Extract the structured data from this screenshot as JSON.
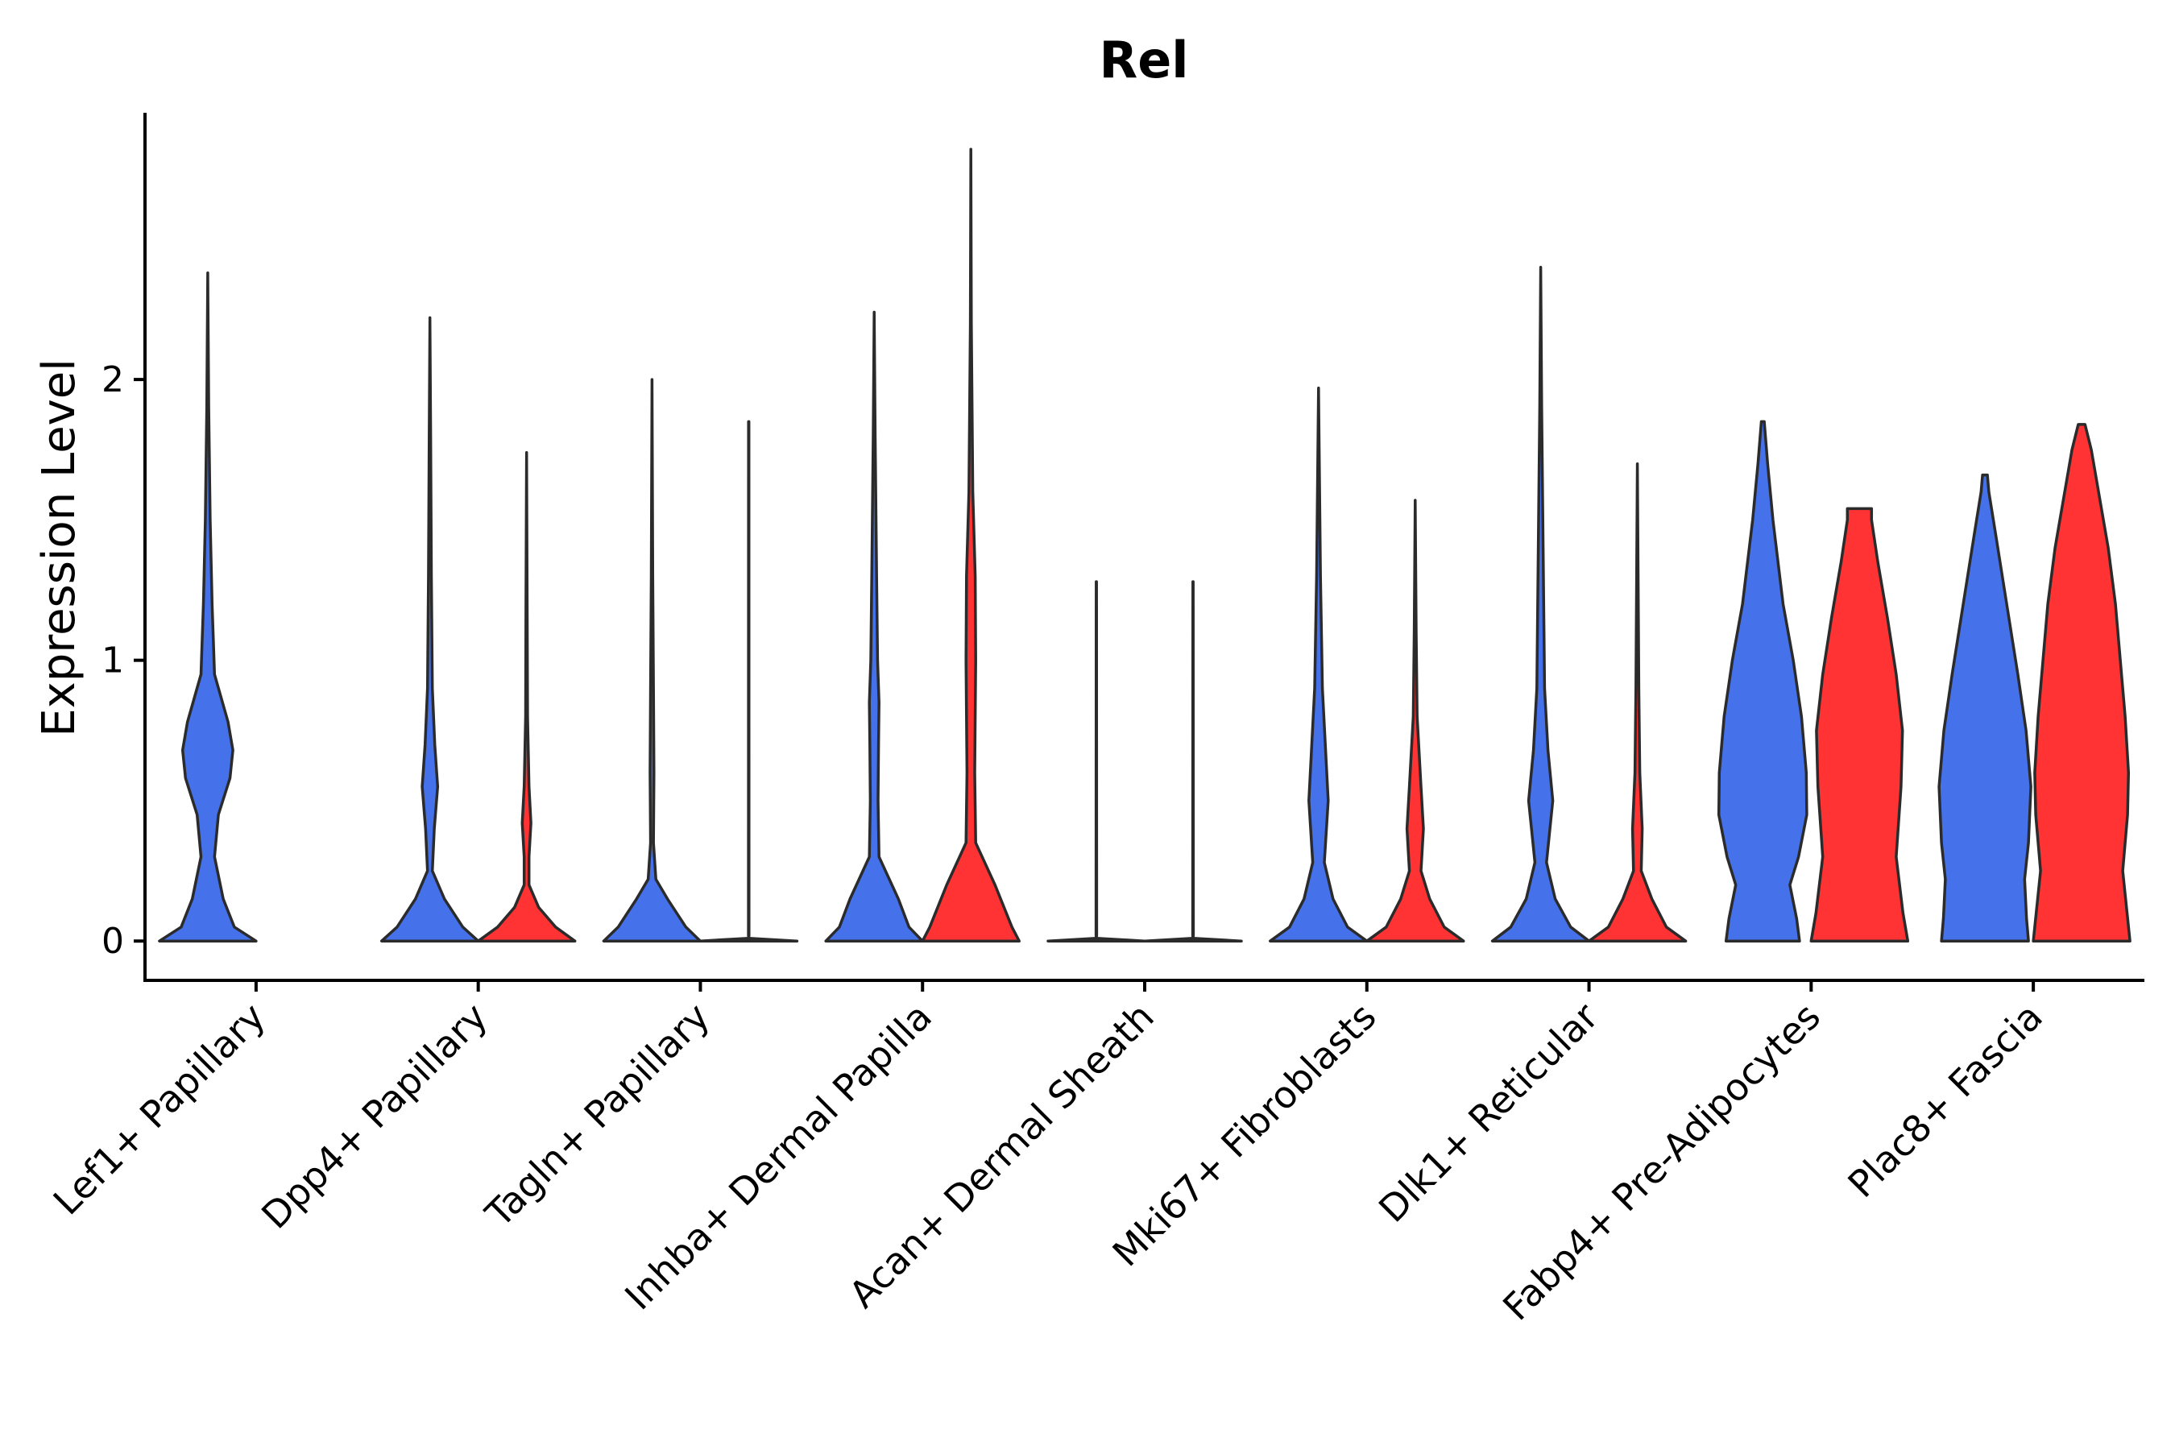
{
  "chart_data": {
    "type": "violin",
    "title": "Rel",
    "xlabel": "",
    "ylabel": "Expression Level",
    "ylim": [
      -0.14,
      2.95
    ],
    "yticks": [
      0,
      1,
      2
    ],
    "grid": false,
    "colors": {
      "group1": "#4572EA",
      "group2": "#FF3333"
    },
    "categories": [
      "Lef1+ Papillary",
      "Dpp4+ Papillary",
      "Tagln+ Papillary",
      "Inhba+ Dermal Papilla",
      "Acan+ Dermal Sheath",
      "Mki67+ Fibroblasts",
      "Dlk1+ Reticular",
      "Fabp4+ Pre-Adipocytes",
      "Plac8+ Fascia"
    ],
    "violins": [
      {
        "category": "Lef1+ Papillary",
        "group": "group1",
        "max": 2.38,
        "density": [
          [
            0,
            1.0
          ],
          [
            0.05,
            0.55
          ],
          [
            0.15,
            0.32
          ],
          [
            0.3,
            0.14
          ],
          [
            0.45,
            0.22
          ],
          [
            0.58,
            0.46
          ],
          [
            0.68,
            0.52
          ],
          [
            0.78,
            0.42
          ],
          [
            0.95,
            0.14
          ],
          [
            1.2,
            0.09
          ],
          [
            1.5,
            0.05
          ],
          [
            1.9,
            0.02
          ],
          [
            2.38,
            0.0
          ]
        ]
      },
      {
        "category": "Dpp4+ Papillary",
        "group": "group1",
        "max": 2.22,
        "density": [
          [
            0,
            1.0
          ],
          [
            0.05,
            0.68
          ],
          [
            0.15,
            0.3
          ],
          [
            0.25,
            0.05
          ],
          [
            0.4,
            0.09
          ],
          [
            0.55,
            0.16
          ],
          [
            0.7,
            0.1
          ],
          [
            0.9,
            0.05
          ],
          [
            1.3,
            0.03
          ],
          [
            1.8,
            0.015
          ],
          [
            2.22,
            0.0
          ]
        ]
      },
      {
        "category": "Dpp4+ Papillary",
        "group": "group2",
        "max": 1.74,
        "density": [
          [
            0,
            1.0
          ],
          [
            0.05,
            0.6
          ],
          [
            0.12,
            0.25
          ],
          [
            0.2,
            0.05
          ],
          [
            0.3,
            0.05
          ],
          [
            0.42,
            0.09
          ],
          [
            0.55,
            0.05
          ],
          [
            0.8,
            0.02
          ],
          [
            1.2,
            0.012
          ],
          [
            1.74,
            0.0
          ]
        ]
      },
      {
        "category": "Tagln+ Papillary",
        "group": "group1",
        "max": 2.0,
        "density": [
          [
            0,
            1.0
          ],
          [
            0.05,
            0.7
          ],
          [
            0.15,
            0.32
          ],
          [
            0.22,
            0.08
          ],
          [
            0.35,
            0.03
          ],
          [
            0.6,
            0.04
          ],
          [
            0.9,
            0.03
          ],
          [
            1.3,
            0.015
          ],
          [
            2.0,
            0.0
          ]
        ]
      },
      {
        "category": "Tagln+ Papillary",
        "group": "group2",
        "max": 1.85,
        "density": [
          [
            0,
            1.0
          ],
          [
            0.01,
            0.0
          ],
          [
            0.02,
            0.006
          ],
          [
            1.85,
            0.004
          ]
        ]
      },
      {
        "category": "Inhba+ Dermal Papilla",
        "group": "group1",
        "max": 2.24,
        "density": [
          [
            0,
            1.0
          ],
          [
            0.05,
            0.72
          ],
          [
            0.15,
            0.5
          ],
          [
            0.3,
            0.1
          ],
          [
            0.5,
            0.08
          ],
          [
            0.7,
            0.09
          ],
          [
            0.85,
            0.1
          ],
          [
            1.0,
            0.07
          ],
          [
            1.3,
            0.05
          ],
          [
            1.8,
            0.02
          ],
          [
            2.24,
            0.0
          ]
        ]
      },
      {
        "category": "Inhba+ Dermal Papilla",
        "group": "group2",
        "max": 2.82,
        "density": [
          [
            0,
            1.0
          ],
          [
            0.05,
            0.85
          ],
          [
            0.2,
            0.5
          ],
          [
            0.35,
            0.1
          ],
          [
            0.6,
            0.08
          ],
          [
            0.8,
            0.09
          ],
          [
            1.0,
            0.1
          ],
          [
            1.3,
            0.09
          ],
          [
            1.6,
            0.04
          ],
          [
            2.2,
            0.01
          ],
          [
            2.82,
            0.0
          ]
        ]
      },
      {
        "category": "Acan+ Dermal Sheath",
        "group": "group1",
        "max": 1.28,
        "density": [
          [
            0,
            1.0
          ],
          [
            0.01,
            0.0
          ],
          [
            0.02,
            0.006
          ],
          [
            1.28,
            0.004
          ]
        ]
      },
      {
        "category": "Acan+ Dermal Sheath",
        "group": "group2",
        "max": 1.28,
        "density": [
          [
            0,
            1.0
          ],
          [
            0.01,
            0.0
          ],
          [
            0.02,
            0.006
          ],
          [
            1.28,
            0.004
          ]
        ]
      },
      {
        "category": "Mki67+ Fibroblasts",
        "group": "group1",
        "max": 1.97,
        "density": [
          [
            0,
            1.0
          ],
          [
            0.05,
            0.6
          ],
          [
            0.15,
            0.3
          ],
          [
            0.28,
            0.12
          ],
          [
            0.5,
            0.2
          ],
          [
            0.7,
            0.14
          ],
          [
            0.9,
            0.08
          ],
          [
            1.3,
            0.04
          ],
          [
            1.97,
            0.0
          ]
        ]
      },
      {
        "category": "Mki67+ Fibroblasts",
        "group": "group2",
        "max": 1.57,
        "density": [
          [
            0,
            1.0
          ],
          [
            0.05,
            0.6
          ],
          [
            0.15,
            0.3
          ],
          [
            0.25,
            0.12
          ],
          [
            0.4,
            0.17
          ],
          [
            0.55,
            0.12
          ],
          [
            0.8,
            0.04
          ],
          [
            1.1,
            0.02
          ],
          [
            1.57,
            0.0
          ]
        ]
      },
      {
        "category": "Dlk1+ Reticular",
        "group": "group1",
        "max": 2.4,
        "density": [
          [
            0,
            1.0
          ],
          [
            0.05,
            0.62
          ],
          [
            0.15,
            0.3
          ],
          [
            0.28,
            0.12
          ],
          [
            0.5,
            0.25
          ],
          [
            0.68,
            0.15
          ],
          [
            0.9,
            0.08
          ],
          [
            1.4,
            0.05
          ],
          [
            1.9,
            0.02
          ],
          [
            2.4,
            0.0
          ]
        ]
      },
      {
        "category": "Dlk1+ Reticular",
        "group": "group2",
        "max": 1.7,
        "density": [
          [
            0,
            1.0
          ],
          [
            0.05,
            0.6
          ],
          [
            0.15,
            0.3
          ],
          [
            0.25,
            0.08
          ],
          [
            0.4,
            0.1
          ],
          [
            0.6,
            0.05
          ],
          [
            0.9,
            0.03
          ],
          [
            1.3,
            0.015
          ],
          [
            1.7,
            0.0
          ]
        ]
      },
      {
        "category": "Fabp4+ Pre-Adipocytes",
        "group": "group1",
        "max": 1.85,
        "density": [
          [
            0,
            0.76
          ],
          [
            0.08,
            0.7
          ],
          [
            0.2,
            0.56
          ],
          [
            0.3,
            0.74
          ],
          [
            0.45,
            0.91
          ],
          [
            0.6,
            0.9
          ],
          [
            0.8,
            0.8
          ],
          [
            1.0,
            0.63
          ],
          [
            1.2,
            0.42
          ],
          [
            1.5,
            0.21
          ],
          [
            1.7,
            0.1
          ],
          [
            1.85,
            0.03
          ]
        ]
      },
      {
        "category": "Fabp4+ Pre-Adipocytes",
        "group": "group2",
        "max": 1.54,
        "density": [
          [
            0,
            1.0
          ],
          [
            0.1,
            0.9
          ],
          [
            0.3,
            0.76
          ],
          [
            0.55,
            0.86
          ],
          [
            0.75,
            0.89
          ],
          [
            0.95,
            0.76
          ],
          [
            1.15,
            0.58
          ],
          [
            1.35,
            0.38
          ],
          [
            1.5,
            0.25
          ],
          [
            1.54,
            0.25
          ]
        ]
      },
      {
        "category": "Plac8+ Fascia",
        "group": "group1",
        "max": 1.66,
        "density": [
          [
            0,
            0.9
          ],
          [
            0.08,
            0.86
          ],
          [
            0.22,
            0.82
          ],
          [
            0.35,
            0.9
          ],
          [
            0.55,
            0.95
          ],
          [
            0.75,
            0.85
          ],
          [
            0.95,
            0.68
          ],
          [
            1.2,
            0.45
          ],
          [
            1.45,
            0.22
          ],
          [
            1.6,
            0.08
          ],
          [
            1.66,
            0.05
          ]
        ]
      },
      {
        "category": "Plac8+ Fascia",
        "group": "group2",
        "max": 1.84,
        "density": [
          [
            0,
            1.0
          ],
          [
            0.1,
            0.94
          ],
          [
            0.25,
            0.85
          ],
          [
            0.45,
            0.95
          ],
          [
            0.6,
            0.97
          ],
          [
            0.8,
            0.9
          ],
          [
            1.0,
            0.8
          ],
          [
            1.2,
            0.7
          ],
          [
            1.4,
            0.55
          ],
          [
            1.6,
            0.35
          ],
          [
            1.75,
            0.2
          ],
          [
            1.84,
            0.07
          ]
        ]
      }
    ]
  }
}
